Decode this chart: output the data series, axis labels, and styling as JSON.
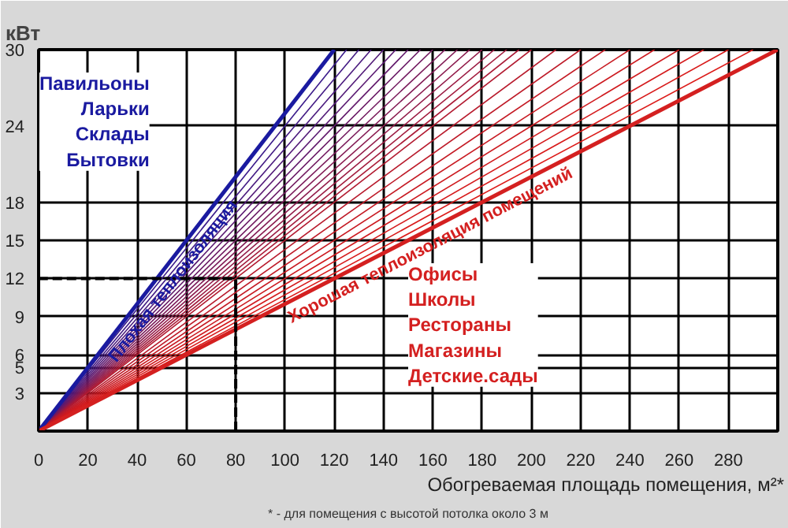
{
  "chart_data": {
    "type": "line",
    "xlabel": "Обогреваемая площадь помещения, м²*",
    "ylabel": "кВт",
    "xlim": [
      0,
      300
    ],
    "ylim": [
      0,
      30
    ],
    "xticks": [
      0,
      20,
      40,
      60,
      80,
      100,
      120,
      140,
      160,
      180,
      200,
      220,
      240,
      260,
      280
    ],
    "yticks": [
      3,
      5,
      6,
      9,
      12,
      15,
      18,
      24,
      30
    ],
    "grid": true,
    "legend": false,
    "line_style": "solid",
    "marker": "none",
    "series": [
      {
        "name": "Плохая теплоизоляция",
        "color": "#1a1aa0",
        "x": [
          0,
          120
        ],
        "values": [
          0,
          30
        ]
      },
      {
        "name": "Хорошая теплоизоляция помещений",
        "color": "#d42020",
        "x": [
          0,
          300
        ],
        "values": [
          0,
          30
        ]
      },
      {
        "color": "#000000",
        "x": [
          80,
          80,
          0
        ],
        "values": [
          0,
          12,
          12
        ],
        "line_style": "dashed"
      },
      {
        "color": "#3a1a8a",
        "x": [
          0,
          125
        ],
        "values": [
          0,
          30
        ]
      },
      {
        "color": "#421a84",
        "x": [
          0,
          130
        ],
        "values": [
          0,
          30
        ]
      },
      {
        "color": "#4a1a7e",
        "x": [
          0,
          135
        ],
        "values": [
          0,
          30
        ]
      },
      {
        "color": "#521a78",
        "x": [
          0,
          140
        ],
        "values": [
          0,
          30
        ]
      },
      {
        "color": "#5a1a72",
        "x": [
          0,
          145
        ],
        "values": [
          0,
          30
        ]
      },
      {
        "color": "#621a6c",
        "x": [
          0,
          150
        ],
        "values": [
          0,
          30
        ]
      },
      {
        "color": "#6a1a66",
        "x": [
          0,
          155
        ],
        "values": [
          0,
          30
        ]
      },
      {
        "color": "#721a60",
        "x": [
          0,
          160
        ],
        "values": [
          0,
          30
        ]
      },
      {
        "color": "#7a1a5a",
        "x": [
          0,
          165
        ],
        "values": [
          0,
          30
        ]
      },
      {
        "color": "#821a54",
        "x": [
          0,
          170
        ],
        "values": [
          0,
          30
        ]
      },
      {
        "color": "#8a1a4e",
        "x": [
          0,
          175
        ],
        "values": [
          0,
          30
        ]
      },
      {
        "color": "#921a48",
        "x": [
          0,
          180
        ],
        "values": [
          0,
          30
        ]
      },
      {
        "color": "#9a1a42",
        "x": [
          0,
          185
        ],
        "values": [
          0,
          30
        ]
      },
      {
        "color": "#a21a3c",
        "x": [
          0,
          190
        ],
        "values": [
          0,
          30
        ]
      },
      {
        "color": "#aa1a36",
        "x": [
          0,
          195
        ],
        "values": [
          0,
          30
        ]
      },
      {
        "color": "#b21a30",
        "x": [
          0,
          200
        ],
        "values": [
          0,
          30
        ]
      },
      {
        "color": "#b81a2c",
        "x": [
          0,
          210
        ],
        "values": [
          0,
          30
        ]
      },
      {
        "color": "#be1a28",
        "x": [
          0,
          220
        ],
        "values": [
          0,
          30
        ]
      },
      {
        "color": "#c41a24",
        "x": [
          0,
          230
        ],
        "values": [
          0,
          30
        ]
      },
      {
        "color": "#c81a22",
        "x": [
          0,
          240
        ],
        "values": [
          0,
          30
        ]
      },
      {
        "color": "#cc1a20",
        "x": [
          0,
          250
        ],
        "values": [
          0,
          30
        ]
      },
      {
        "color": "#d01a1e",
        "x": [
          0,
          260
        ],
        "values": [
          0,
          30
        ]
      },
      {
        "color": "#d41a1c",
        "x": [
          0,
          270
        ],
        "values": [
          0,
          30
        ]
      },
      {
        "color": "#d81a1a",
        "x": [
          0,
          280
        ],
        "values": [
          0,
          30
        ]
      },
      {
        "color": "#dc1a18",
        "x": [
          0,
          290
        ],
        "values": [
          0,
          30
        ]
      }
    ],
    "annotations": [
      "Павильоны\nЛарьки\nСклады\nБытовки",
      "Офисы\nШколы\nРестораны\nМагазины\nДетские.сады",
      "* - для помещения с высотой потолка около 3 м"
    ]
  }
}
